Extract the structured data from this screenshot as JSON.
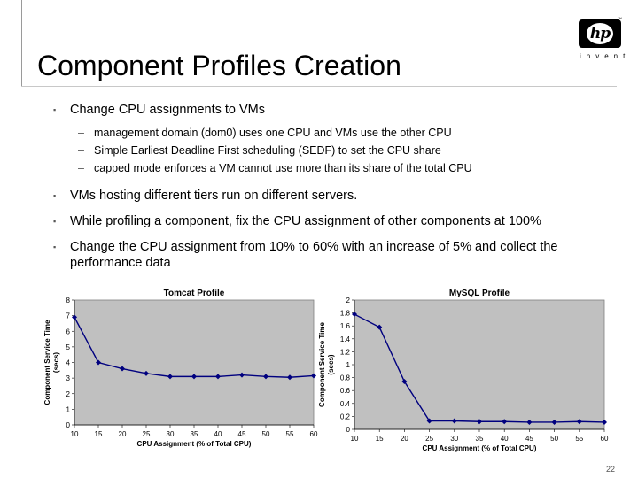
{
  "slide": {
    "title": "Component Profiles Creation",
    "page_number": "22",
    "logo": {
      "mark": "hp",
      "tagline": "invent",
      "trademark": "™"
    },
    "bullets": [
      {
        "text": "Change CPU assignments to VMs",
        "subs": [
          "management domain (dom0) uses one CPU and VMs use the other CPU",
          "Simple Earliest Deadline First scheduling (SEDF) to set the CPU share",
          "capped mode enforces a VM cannot use more than its share of the total CPU"
        ]
      },
      {
        "text": "VMs hosting different tiers run on different servers.",
        "subs": []
      },
      {
        "text": "While profiling a component, fix the CPU assignment of other components at 100%",
        "subs": []
      },
      {
        "text": "Change the CPU assignment from 10% to 60% with an increase of 5% and collect the performance data",
        "subs": []
      }
    ]
  },
  "chart_data": [
    {
      "type": "line",
      "title": "Tomcat Profile",
      "xlabel": "CPU Assignment (% of Total CPU)",
      "ylabel": "Component Service Time (secs)",
      "x": [
        10,
        15,
        20,
        25,
        30,
        35,
        40,
        45,
        50,
        55,
        60
      ],
      "series": [
        {
          "values": [
            6.9,
            4.0,
            3.6,
            3.3,
            3.1,
            3.1,
            3.1,
            3.2,
            3.1,
            3.05,
            3.15
          ]
        }
      ],
      "xticks": [
        "10",
        "15",
        "20",
        "25",
        "30",
        "35",
        "40",
        "45",
        "50",
        "55",
        "60"
      ],
      "yticks": [
        "0",
        "1",
        "2",
        "3",
        "4",
        "5",
        "6",
        "7",
        "8"
      ],
      "xlim": [
        10,
        60
      ],
      "ylim": [
        0,
        8
      ],
      "grid": false,
      "plot_area_color": "#c0c0c0",
      "series_color": "#00007f"
    },
    {
      "type": "line",
      "title": "MySQL Profile",
      "xlabel": "CPU Assignment (% of Total CPU)",
      "ylabel": "Component Service Time (secs)",
      "x": [
        10,
        15,
        20,
        25,
        30,
        35,
        40,
        45,
        50,
        55,
        60
      ],
      "series": [
        {
          "values": [
            1.78,
            1.58,
            0.74,
            0.13,
            0.13,
            0.12,
            0.12,
            0.11,
            0.11,
            0.12,
            0.11
          ]
        }
      ],
      "xticks": [
        "10",
        "15",
        "20",
        "25",
        "30",
        "35",
        "40",
        "45",
        "50",
        "55",
        "60"
      ],
      "yticks": [
        "0",
        "0.2",
        "0.4",
        "0.6",
        "0.8",
        "1",
        "1.2",
        "1.4",
        "1.6",
        "1.8",
        "2"
      ],
      "xlim": [
        10,
        60
      ],
      "ylim": [
        0,
        2
      ],
      "grid": false,
      "plot_area_color": "#c0c0c0",
      "series_color": "#00007f"
    }
  ]
}
